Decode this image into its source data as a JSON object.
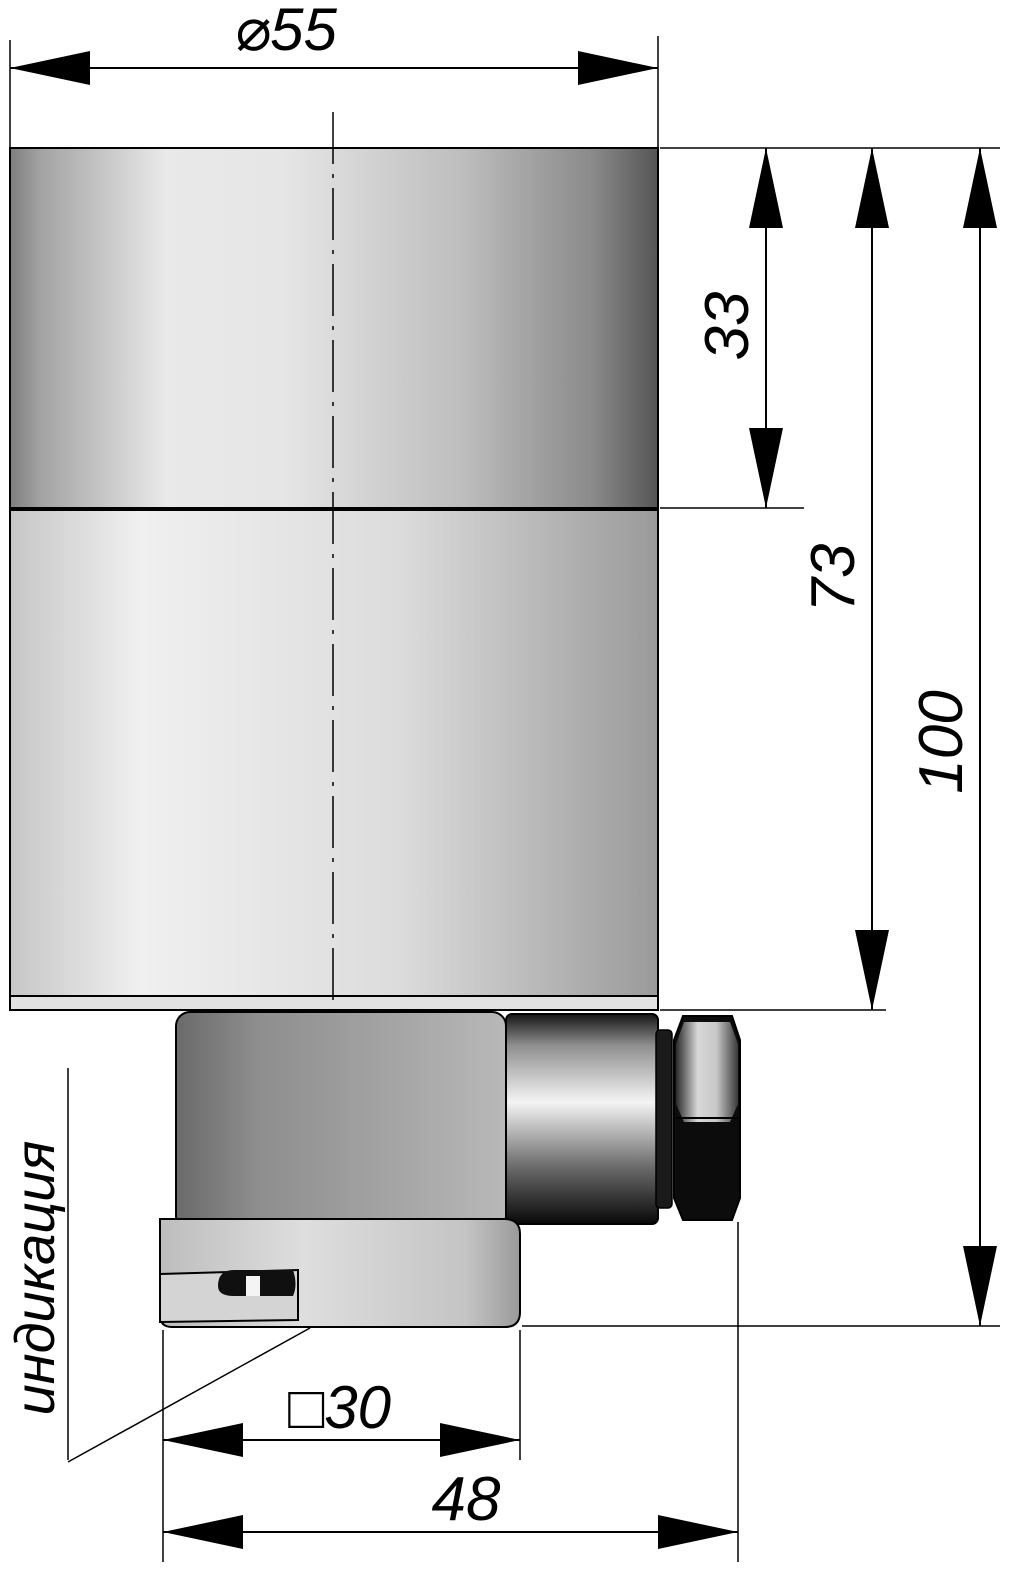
{
  "dimensions": {
    "diameter_symbol": "⌀",
    "diameter": "55",
    "face_height": "33",
    "body_height": "73",
    "total_height": "100",
    "square_symbol": "□",
    "connector_square": "30",
    "total_width": "48"
  },
  "annotation": {
    "indicator_label": "индикация"
  }
}
